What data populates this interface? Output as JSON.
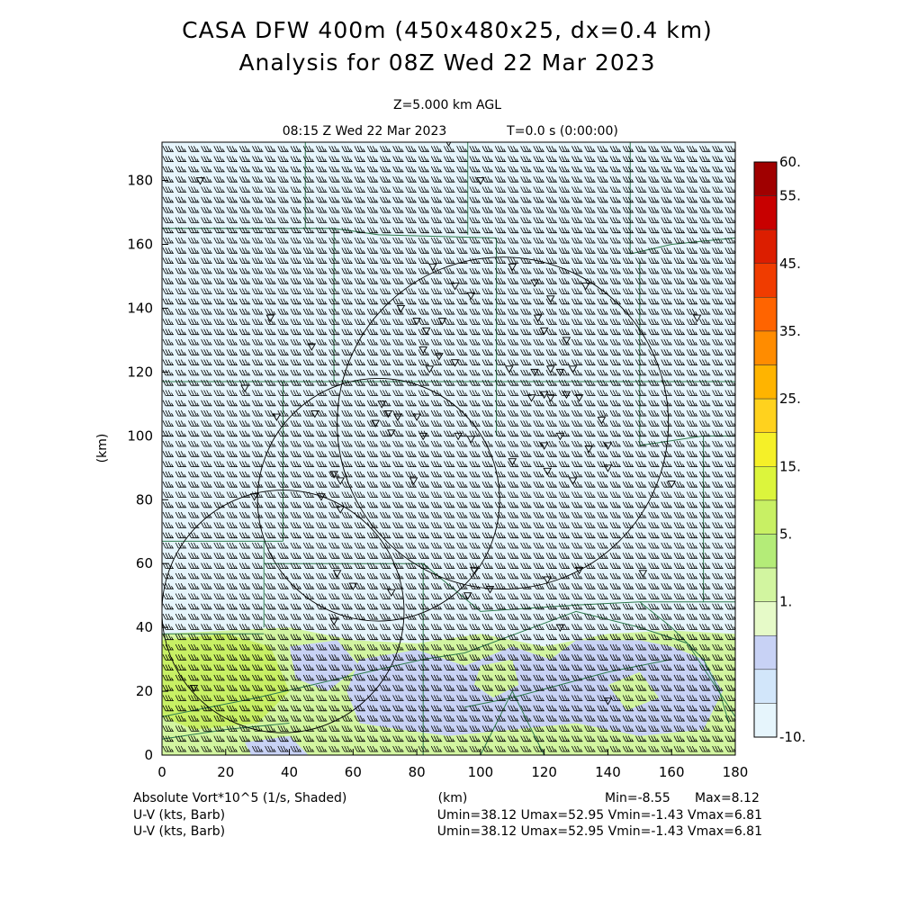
{
  "chart_data": {
    "type": "heatmap",
    "title": "CASA DFW 400m (450x480x25, dx=0.4 km)",
    "subtitle": "Analysis for 08Z Wed 22 Mar 2023",
    "level_label": "Z=5.000 km AGL",
    "time_label": "08:15 Z Wed 22 Mar 2023",
    "t_label": "T=0.0 s (0:00:00)",
    "xlabel": "(km)",
    "ylabel": "(km)",
    "xlim": [
      0,
      180
    ],
    "ylim": [
      0,
      192
    ],
    "xticks": [
      0,
      20,
      40,
      60,
      80,
      100,
      120,
      140,
      160,
      180
    ],
    "yticks": [
      0,
      20,
      40,
      60,
      80,
      100,
      120,
      140,
      160,
      180
    ],
    "grid": false,
    "legend": "right colorbar",
    "colorbar": {
      "labels": [
        "60.",
        "55.",
        "45.",
        "35.",
        "25.",
        "15.",
        "5.",
        "1.",
        "-10."
      ],
      "colors": [
        "#a00000",
        "#c80000",
        "#dc1e00",
        "#f03c00",
        "#ff6400",
        "#ff8c00",
        "#ffb400",
        "#ffd21e",
        "#f5f028",
        "#dcf53c",
        "#c8f064",
        "#b4ec78",
        "#d2f5a0",
        "#e6fac8",
        "#c8d2f5",
        "#d2e6fa",
        "#e6f5fc"
      ]
    },
    "field": {
      "name": "Absolute Vort*10^5 (1/s, Shaded)",
      "min_label": "Min=-8.55",
      "max_label": "Max=8.12"
    },
    "barbs": [
      {
        "name": "U-V (kts, Barb)",
        "stats": "Umin=38.12 Umax=52.95 Vmin=-1.43 Vmax=6.81"
      },
      {
        "name": "U-V (kts, Barb)",
        "stats": "Umin=38.12 Umax=52.95 Vmin=-1.43 Vmax=6.81"
      }
    ],
    "range_rings": [
      {
        "cx": 38,
        "cy": 45,
        "r": 38
      },
      {
        "cx": 68,
        "cy": 80,
        "r": 38
      },
      {
        "cx": 107,
        "cy": 104,
        "r": 52
      }
    ]
  },
  "colors": {
    "background_field": "#e6f5fc",
    "low_field_blue": "#c8d2f5",
    "low_field_green": "#d2f5a0",
    "low_field_green2": "#c8f064",
    "county_lines": "#2e7d4f"
  }
}
